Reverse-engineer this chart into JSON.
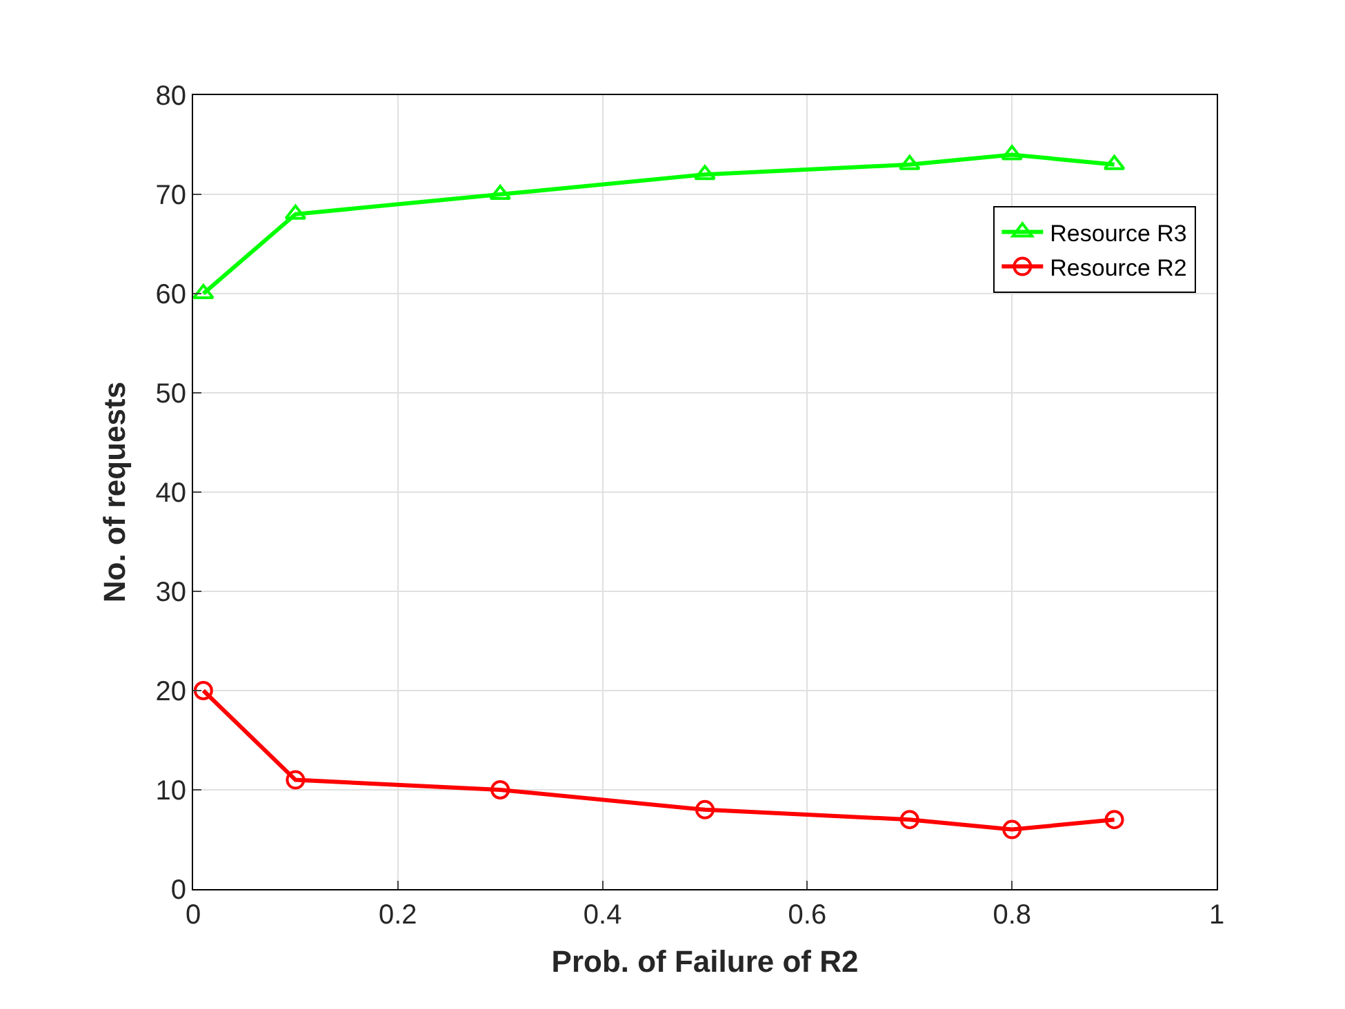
{
  "chart_data": {
    "type": "line",
    "xlabel": "Prob. of Failure of R2",
    "ylabel": "No. of requests",
    "x": [
      0.01,
      0.1,
      0.3,
      0.5,
      0.7,
      0.8,
      0.9
    ],
    "series": [
      {
        "name": "Resource R3",
        "color": "#00ff00",
        "marker": "triangle",
        "values": [
          60,
          68,
          70,
          72,
          73,
          74,
          73
        ]
      },
      {
        "name": "Resource R2",
        "color": "#ff0000",
        "marker": "circle",
        "values": [
          20,
          11,
          10,
          8,
          7,
          6,
          7
        ]
      }
    ],
    "xlim": [
      0,
      1
    ],
    "xticks": [
      0,
      0.2,
      0.4,
      0.6,
      0.8,
      1
    ],
    "ylim": [
      0,
      80
    ],
    "yticks": [
      0,
      10,
      20,
      30,
      40,
      50,
      60,
      70,
      80
    ],
    "grid": true,
    "legend": "top right",
    "line_style": "solid"
  }
}
